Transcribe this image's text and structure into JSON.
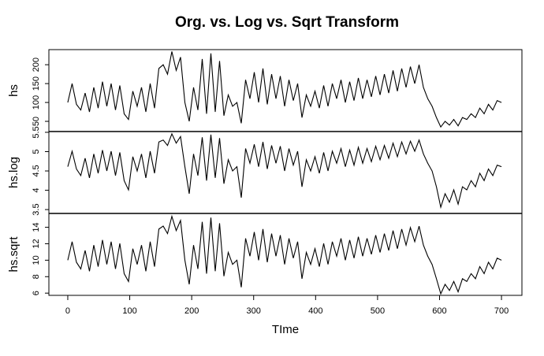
{
  "chart_data": {
    "type": "line",
    "title": "Org. vs. Log vs. Sqrt Transform",
    "xlabel": "TIme",
    "color": "#000000",
    "xlim": [
      -30.5,
      733
    ],
    "xticks": [
      0,
      100,
      200,
      300,
      400,
      500,
      600,
      700
    ],
    "x": [
      0,
      7,
      14,
      21,
      28,
      35,
      42,
      49,
      56,
      63,
      70,
      77,
      84,
      91,
      98,
      105,
      112,
      119,
      126,
      133,
      140,
      147,
      154,
      161,
      168,
      175,
      182,
      189,
      196,
      203,
      210,
      217,
      224,
      231,
      238,
      245,
      252,
      259,
      266,
      273,
      280,
      287,
      294,
      301,
      308,
      315,
      322,
      329,
      336,
      343,
      350,
      357,
      364,
      371,
      378,
      385,
      392,
      399,
      406,
      413,
      420,
      427,
      434,
      441,
      448,
      455,
      462,
      469,
      476,
      483,
      490,
      497,
      504,
      511,
      518,
      525,
      532,
      539,
      546,
      553,
      560,
      567,
      574,
      581,
      588,
      595,
      602,
      609,
      616,
      623,
      630,
      637,
      644,
      651,
      658,
      665,
      672,
      679,
      686,
      693,
      700
    ],
    "panels": [
      {
        "ylabel": "hs",
        "ylim": [
          23,
          240
        ],
        "yticks": [
          50,
          100,
          150,
          200
        ],
        "values": [
          100,
          150,
          95,
          80,
          125,
          75,
          140,
          85,
          155,
          90,
          150,
          80,
          145,
          70,
          55,
          130,
          90,
          140,
          75,
          150,
          85,
          190,
          200,
          175,
          235,
          185,
          220,
          100,
          50,
          140,
          80,
          215,
          70,
          230,
          75,
          210,
          65,
          120,
          90,
          100,
          45,
          160,
          110,
          180,
          100,
          190,
          95,
          175,
          110,
          170,
          90,
          160,
          105,
          150,
          60,
          120,
          90,
          130,
          85,
          145,
          90,
          150,
          110,
          160,
          100,
          155,
          105,
          165,
          110,
          160,
          115,
          170,
          120,
          175,
          125,
          185,
          130,
          190,
          140,
          195,
          150,
          200,
          140,
          110,
          90,
          60,
          35,
          50,
          40,
          55,
          38,
          60,
          55,
          70,
          60,
          85,
          70,
          95,
          80,
          105,
          100
        ]
      },
      {
        "ylabel": "hs.log",
        "ylim": [
          3.4,
          5.52
        ],
        "yticks": [
          3.5,
          4.0,
          4.5,
          5.0,
          5.5
        ],
        "values": [
          4.61,
          5.01,
          4.55,
          4.38,
          4.83,
          4.32,
          4.94,
          4.44,
          5.04,
          4.5,
          5.01,
          4.38,
          4.98,
          4.25,
          4.01,
          4.87,
          4.5,
          4.94,
          4.32,
          5.01,
          4.44,
          5.25,
          5.3,
          5.16,
          5.46,
          5.22,
          5.39,
          4.61,
          3.91,
          4.94,
          4.38,
          5.37,
          4.25,
          5.44,
          4.32,
          5.35,
          4.17,
          4.79,
          4.5,
          4.61,
          3.81,
          5.08,
          4.7,
          5.19,
          4.61,
          5.25,
          4.55,
          5.16,
          4.7,
          5.14,
          4.5,
          5.08,
          4.65,
          5.01,
          4.09,
          4.79,
          4.5,
          4.87,
          4.44,
          4.98,
          4.5,
          5.01,
          4.7,
          5.08,
          4.61,
          5.04,
          4.65,
          5.11,
          4.7,
          5.08,
          4.74,
          5.14,
          4.79,
          5.16,
          4.83,
          5.22,
          4.87,
          5.25,
          4.94,
          5.27,
          5.01,
          5.3,
          4.94,
          4.7,
          4.5,
          4.09,
          3.56,
          3.91,
          3.69,
          4.01,
          3.64,
          4.09,
          4.01,
          4.25,
          4.09,
          4.44,
          4.25,
          4.55,
          4.38,
          4.65,
          4.61
        ]
      },
      {
        "ylabel": "hs.sqrt",
        "ylim": [
          5.73,
          15.68
        ],
        "yticks": [
          6,
          8,
          10,
          12,
          14
        ],
        "values": [
          10,
          12.25,
          9.75,
          8.94,
          11.18,
          8.66,
          11.83,
          9.22,
          12.45,
          9.49,
          12.25,
          8.94,
          12.04,
          8.37,
          7.42,
          11.4,
          9.49,
          11.83,
          8.66,
          12.25,
          9.22,
          13.78,
          14.14,
          13.23,
          15.33,
          13.6,
          14.83,
          10,
          7.07,
          11.83,
          8.94,
          14.66,
          8.37,
          15.17,
          8.66,
          14.49,
          8.06,
          10.95,
          9.49,
          10,
          6.71,
          12.65,
          10.49,
          13.42,
          10,
          13.78,
          9.75,
          13.23,
          10.49,
          13.04,
          9.49,
          12.65,
          10.25,
          12.25,
          7.75,
          10.95,
          9.49,
          11.4,
          9.22,
          12.04,
          9.49,
          12.25,
          10.49,
          12.65,
          10,
          12.45,
          10.25,
          12.85,
          10.49,
          12.65,
          10.72,
          13.04,
          10.95,
          13.23,
          11.18,
          13.6,
          11.4,
          13.78,
          11.83,
          13.96,
          12.25,
          14.14,
          11.83,
          10.49,
          9.49,
          7.75,
          5.92,
          7.07,
          6.32,
          7.42,
          6.16,
          7.75,
          7.42,
          8.37,
          7.75,
          9.22,
          8.37,
          9.75,
          8.94,
          10.25,
          10
        ]
      }
    ]
  }
}
